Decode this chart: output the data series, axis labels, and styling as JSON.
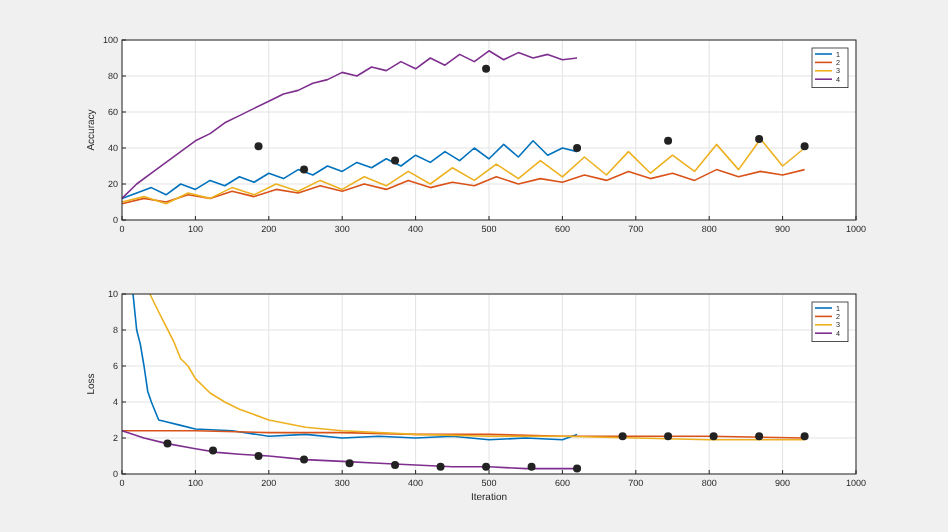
{
  "chart_data": [
    {
      "type": "line",
      "ylabel": "Accuracy",
      "xlim": [
        0,
        1000
      ],
      "xticks": [
        0,
        100,
        200,
        300,
        400,
        500,
        600,
        700,
        800,
        900,
        1000
      ],
      "ylim": [
        0,
        100
      ],
      "yticks": [
        0,
        20,
        40,
        60,
        80,
        100
      ],
      "grid": true,
      "legend": "top right",
      "line_style": "solid",
      "series": [
        {
          "name": "1",
          "color": "#0072bd",
          "x": [
            0,
            20,
            40,
            60,
            80,
            100,
            120,
            140,
            160,
            180,
            200,
            220,
            240,
            260,
            280,
            300,
            320,
            340,
            360,
            380,
            400,
            420,
            440,
            460,
            480,
            500,
            520,
            540,
            560,
            580,
            600,
            620
          ],
          "values": [
            12,
            15,
            18,
            14,
            20,
            17,
            22,
            19,
            24,
            21,
            26,
            23,
            28,
            25,
            30,
            27,
            32,
            29,
            34,
            30,
            36,
            32,
            38,
            33,
            40,
            34,
            42,
            35,
            44,
            36,
            40,
            38
          ]
        },
        {
          "name": "2",
          "color": "#d95319",
          "x": [
            0,
            30,
            60,
            90,
            120,
            150,
            180,
            210,
            240,
            270,
            300,
            330,
            360,
            390,
            420,
            450,
            480,
            510,
            540,
            570,
            600,
            630,
            660,
            690,
            720,
            750,
            780,
            810,
            840,
            870,
            900,
            930
          ],
          "values": [
            9,
            12,
            10,
            14,
            12,
            16,
            13,
            17,
            15,
            19,
            16,
            20,
            17,
            22,
            18,
            21,
            19,
            24,
            20,
            23,
            21,
            25,
            22,
            27,
            23,
            26,
            22,
            28,
            24,
            27,
            25,
            28
          ]
        },
        {
          "name": "3",
          "color": "#edb120",
          "x": [
            0,
            30,
            60,
            90,
            120,
            150,
            180,
            210,
            240,
            270,
            300,
            330,
            360,
            390,
            420,
            450,
            480,
            510,
            540,
            570,
            600,
            630,
            660,
            690,
            720,
            750,
            780,
            810,
            840,
            870,
            900,
            930
          ],
          "values": [
            10,
            13,
            9,
            15,
            12,
            18,
            14,
            20,
            16,
            22,
            17,
            24,
            19,
            27,
            20,
            29,
            22,
            31,
            23,
            33,
            24,
            35,
            25,
            38,
            26,
            36,
            27,
            42,
            28,
            45,
            30,
            40
          ]
        },
        {
          "name": "4",
          "color": "#7e2f8e",
          "x": [
            0,
            20,
            40,
            60,
            80,
            100,
            120,
            140,
            160,
            180,
            200,
            220,
            240,
            260,
            280,
            300,
            320,
            340,
            360,
            380,
            400,
            420,
            440,
            460,
            480,
            500,
            520,
            540,
            560,
            580,
            600,
            620
          ],
          "values": [
            12,
            20,
            26,
            32,
            38,
            44,
            48,
            54,
            58,
            62,
            66,
            70,
            72,
            76,
            78,
            82,
            80,
            85,
            83,
            88,
            84,
            90,
            86,
            92,
            88,
            94,
            89,
            93,
            90,
            92,
            89,
            90
          ]
        },
        {
          "type": "scatter",
          "marker": "circle",
          "color": "#222222",
          "x": [
            186,
            248,
            372,
            496,
            620,
            744,
            868,
            930
          ],
          "values": [
            41,
            28,
            33,
            84,
            40,
            44,
            45,
            41
          ]
        }
      ]
    },
    {
      "type": "line",
      "xlabel": "Iteration",
      "ylabel": "Loss",
      "xlim": [
        0,
        1000
      ],
      "xticks": [
        0,
        100,
        200,
        300,
        400,
        500,
        600,
        700,
        800,
        900,
        1000
      ],
      "ylim": [
        0,
        10
      ],
      "yticks": [
        0,
        2,
        4,
        6,
        8,
        10
      ],
      "grid": true,
      "legend": "top right",
      "line_style": "solid",
      "series": [
        {
          "name": "1",
          "color": "#0072bd",
          "x": [
            15,
            20,
            25,
            30,
            35,
            40,
            50,
            60,
            80,
            100,
            150,
            200,
            250,
            300,
            350,
            400,
            450,
            500,
            550,
            600,
            620
          ],
          "values": [
            10,
            8,
            7.2,
            6,
            4.6,
            4,
            3,
            2.9,
            2.7,
            2.5,
            2.4,
            2.1,
            2.2,
            2.0,
            2.1,
            2.0,
            2.1,
            1.9,
            2.0,
            1.9,
            2.2
          ]
        },
        {
          "name": "2",
          "color": "#d95319",
          "x": [
            0,
            100,
            200,
            300,
            400,
            500,
            600,
            700,
            800,
            930
          ],
          "values": [
            2.4,
            2.4,
            2.3,
            2.3,
            2.2,
            2.2,
            2.1,
            2.1,
            2.1,
            2.0
          ]
        },
        {
          "name": "3",
          "color": "#edb120",
          "x": [
            38,
            50,
            60,
            70,
            80,
            90,
            100,
            120,
            140,
            160,
            180,
            200,
            250,
            300,
            400,
            500,
            600,
            700,
            800,
            930
          ],
          "values": [
            10,
            9,
            8.2,
            7.4,
            6.4,
            6,
            5.3,
            4.5,
            4,
            3.6,
            3.3,
            3,
            2.6,
            2.4,
            2.2,
            2.1,
            2.1,
            2.0,
            1.9,
            1.9
          ]
        },
        {
          "name": "4",
          "color": "#7e2f8e",
          "x": [
            0,
            30,
            60,
            100,
            130,
            160,
            200,
            250,
            300,
            350,
            400,
            450,
            500,
            550,
            620
          ],
          "values": [
            2.4,
            2.0,
            1.7,
            1.4,
            1.2,
            1.1,
            1.0,
            0.8,
            0.7,
            0.6,
            0.5,
            0.4,
            0.4,
            0.3,
            0.3
          ]
        },
        {
          "type": "scatter",
          "marker": "circle",
          "color": "#222222",
          "x": [
            62,
            124,
            186,
            248,
            310,
            372,
            434,
            496,
            558,
            620,
            682,
            744,
            806,
            868,
            930
          ],
          "values": [
            1.7,
            1.3,
            1.0,
            0.8,
            0.6,
            0.5,
            0.4,
            0.4,
            0.4,
            0.3,
            2.1,
            2.1,
            2.1,
            2.1,
            2.1
          ]
        }
      ]
    }
  ]
}
